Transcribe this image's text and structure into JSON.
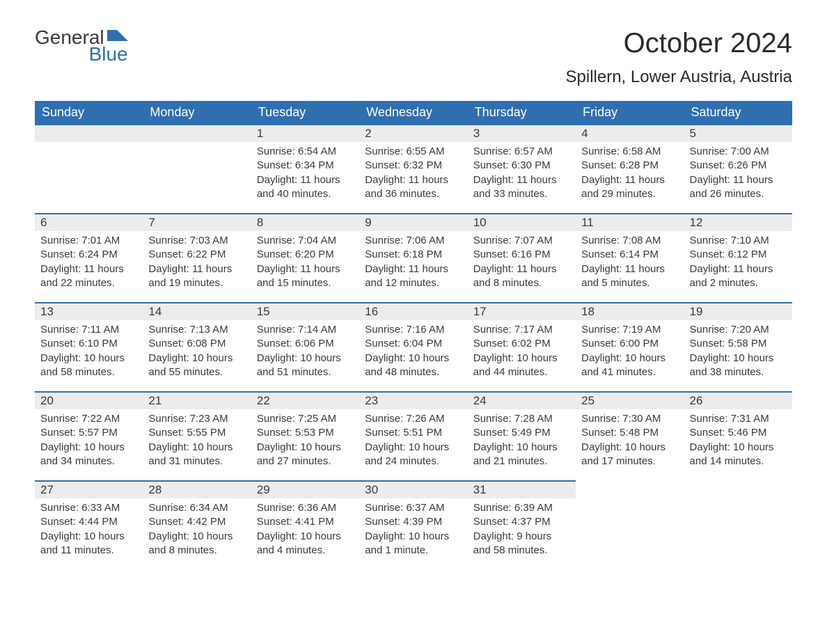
{
  "logo": {
    "line1": "General",
    "line2": "Blue"
  },
  "title": "October 2024",
  "location": "Spillern, Lower Austria, Austria",
  "colors": {
    "header_bg": "#2f6fb0",
    "header_text": "#ffffff",
    "daynum_bg": "#ececec",
    "daynum_border": "#2f6fb0",
    "text": "#3a3a3a",
    "page_bg": "#ffffff",
    "logo_blue": "#2f6fb0"
  },
  "typography": {
    "title_fontsize": 40,
    "location_fontsize": 24,
    "dayheader_fontsize": 18,
    "daynum_fontsize": 17,
    "body_fontsize": 15
  },
  "calendar": {
    "type": "month-grid",
    "columns": [
      "Sunday",
      "Monday",
      "Tuesday",
      "Wednesday",
      "Thursday",
      "Friday",
      "Saturday"
    ],
    "weeks": [
      [
        null,
        null,
        {
          "n": "1",
          "sunrise": "6:54 AM",
          "sunset": "6:34 PM",
          "daylight": "11 hours and 40 minutes."
        },
        {
          "n": "2",
          "sunrise": "6:55 AM",
          "sunset": "6:32 PM",
          "daylight": "11 hours and 36 minutes."
        },
        {
          "n": "3",
          "sunrise": "6:57 AM",
          "sunset": "6:30 PM",
          "daylight": "11 hours and 33 minutes."
        },
        {
          "n": "4",
          "sunrise": "6:58 AM",
          "sunset": "6:28 PM",
          "daylight": "11 hours and 29 minutes."
        },
        {
          "n": "5",
          "sunrise": "7:00 AM",
          "sunset": "6:26 PM",
          "daylight": "11 hours and 26 minutes."
        }
      ],
      [
        {
          "n": "6",
          "sunrise": "7:01 AM",
          "sunset": "6:24 PM",
          "daylight": "11 hours and 22 minutes."
        },
        {
          "n": "7",
          "sunrise": "7:03 AM",
          "sunset": "6:22 PM",
          "daylight": "11 hours and 19 minutes."
        },
        {
          "n": "8",
          "sunrise": "7:04 AM",
          "sunset": "6:20 PM",
          "daylight": "11 hours and 15 minutes."
        },
        {
          "n": "9",
          "sunrise": "7:06 AM",
          "sunset": "6:18 PM",
          "daylight": "11 hours and 12 minutes."
        },
        {
          "n": "10",
          "sunrise": "7:07 AM",
          "sunset": "6:16 PM",
          "daylight": "11 hours and 8 minutes."
        },
        {
          "n": "11",
          "sunrise": "7:08 AM",
          "sunset": "6:14 PM",
          "daylight": "11 hours and 5 minutes."
        },
        {
          "n": "12",
          "sunrise": "7:10 AM",
          "sunset": "6:12 PM",
          "daylight": "11 hours and 2 minutes."
        }
      ],
      [
        {
          "n": "13",
          "sunrise": "7:11 AM",
          "sunset": "6:10 PM",
          "daylight": "10 hours and 58 minutes."
        },
        {
          "n": "14",
          "sunrise": "7:13 AM",
          "sunset": "6:08 PM",
          "daylight": "10 hours and 55 minutes."
        },
        {
          "n": "15",
          "sunrise": "7:14 AM",
          "sunset": "6:06 PM",
          "daylight": "10 hours and 51 minutes."
        },
        {
          "n": "16",
          "sunrise": "7:16 AM",
          "sunset": "6:04 PM",
          "daylight": "10 hours and 48 minutes."
        },
        {
          "n": "17",
          "sunrise": "7:17 AM",
          "sunset": "6:02 PM",
          "daylight": "10 hours and 44 minutes."
        },
        {
          "n": "18",
          "sunrise": "7:19 AM",
          "sunset": "6:00 PM",
          "daylight": "10 hours and 41 minutes."
        },
        {
          "n": "19",
          "sunrise": "7:20 AM",
          "sunset": "5:58 PM",
          "daylight": "10 hours and 38 minutes."
        }
      ],
      [
        {
          "n": "20",
          "sunrise": "7:22 AM",
          "sunset": "5:57 PM",
          "daylight": "10 hours and 34 minutes."
        },
        {
          "n": "21",
          "sunrise": "7:23 AM",
          "sunset": "5:55 PM",
          "daylight": "10 hours and 31 minutes."
        },
        {
          "n": "22",
          "sunrise": "7:25 AM",
          "sunset": "5:53 PM",
          "daylight": "10 hours and 27 minutes."
        },
        {
          "n": "23",
          "sunrise": "7:26 AM",
          "sunset": "5:51 PM",
          "daylight": "10 hours and 24 minutes."
        },
        {
          "n": "24",
          "sunrise": "7:28 AM",
          "sunset": "5:49 PM",
          "daylight": "10 hours and 21 minutes."
        },
        {
          "n": "25",
          "sunrise": "7:30 AM",
          "sunset": "5:48 PM",
          "daylight": "10 hours and 17 minutes."
        },
        {
          "n": "26",
          "sunrise": "7:31 AM",
          "sunset": "5:46 PM",
          "daylight": "10 hours and 14 minutes."
        }
      ],
      [
        {
          "n": "27",
          "sunrise": "6:33 AM",
          "sunset": "4:44 PM",
          "daylight": "10 hours and 11 minutes."
        },
        {
          "n": "28",
          "sunrise": "6:34 AM",
          "sunset": "4:42 PM",
          "daylight": "10 hours and 8 minutes."
        },
        {
          "n": "29",
          "sunrise": "6:36 AM",
          "sunset": "4:41 PM",
          "daylight": "10 hours and 4 minutes."
        },
        {
          "n": "30",
          "sunrise": "6:37 AM",
          "sunset": "4:39 PM",
          "daylight": "10 hours and 1 minute."
        },
        {
          "n": "31",
          "sunrise": "6:39 AM",
          "sunset": "4:37 PM",
          "daylight": "9 hours and 58 minutes."
        },
        null,
        null
      ]
    ],
    "labels": {
      "sunrise": "Sunrise:",
      "sunset": "Sunset:",
      "daylight": "Daylight:"
    }
  }
}
